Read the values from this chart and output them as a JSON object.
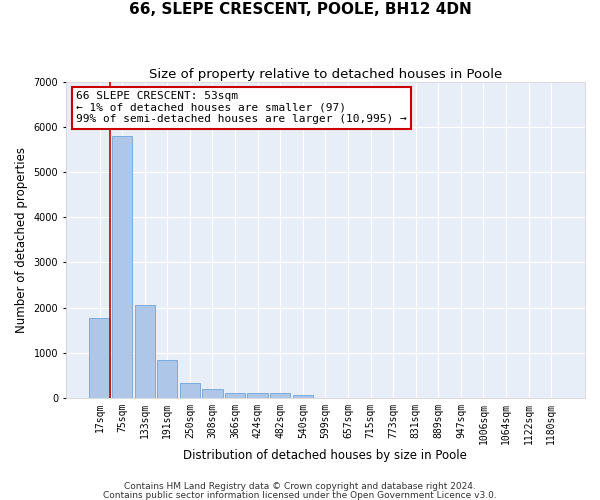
{
  "title": "66, SLEPE CRESCENT, POOLE, BH12 4DN",
  "subtitle": "Size of property relative to detached houses in Poole",
  "xlabel": "Distribution of detached houses by size in Poole",
  "ylabel": "Number of detached properties",
  "bar_color": "#aec6e8",
  "bar_edge_color": "#5b9bd5",
  "categories": [
    "17sqm",
    "75sqm",
    "133sqm",
    "191sqm",
    "250sqm",
    "308sqm",
    "366sqm",
    "424sqm",
    "482sqm",
    "540sqm",
    "599sqm",
    "657sqm",
    "715sqm",
    "773sqm",
    "831sqm",
    "889sqm",
    "947sqm",
    "1006sqm",
    "1064sqm",
    "1122sqm",
    "1180sqm"
  ],
  "values": [
    1780,
    5800,
    2060,
    830,
    340,
    195,
    120,
    115,
    100,
    75,
    0,
    0,
    0,
    0,
    0,
    0,
    0,
    0,
    0,
    0,
    0
  ],
  "ylim": [
    0,
    7000
  ],
  "yticks": [
    0,
    1000,
    2000,
    3000,
    4000,
    5000,
    6000,
    7000
  ],
  "annotation_text": "66 SLEPE CRESCENT: 53sqm\n← 1% of detached houses are smaller (97)\n99% of semi-detached houses are larger (10,995) →",
  "vline_color": "#cc0000",
  "box_color": "#cc0000",
  "footnote1": "Contains HM Land Registry data © Crown copyright and database right 2024.",
  "footnote2": "Contains public sector information licensed under the Open Government Licence v3.0.",
  "background_color": "#e8eef8",
  "grid_color": "#ffffff",
  "title_fontsize": 11,
  "subtitle_fontsize": 9.5,
  "axis_label_fontsize": 8.5,
  "tick_fontsize": 7,
  "annotation_fontsize": 8,
  "footnote_fontsize": 6.5
}
